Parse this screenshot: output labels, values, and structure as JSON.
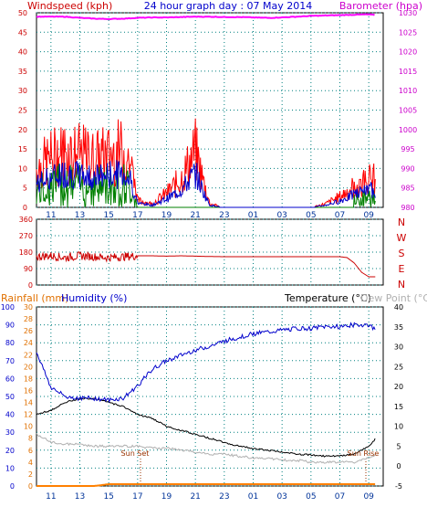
{
  "header": {
    "left": "Windspeed (kph)",
    "center": "24 hour graph day : 07 May 2014",
    "right": "Barometer (hpa)"
  },
  "bottom_header": {
    "rain": "Rainfall (mm)",
    "humidity": "Humidity (%)",
    "temperature": "Temperature (°C)",
    "dew": "Dew Point (°C)"
  },
  "colors": {
    "windspeed": "#ff0000",
    "wind_avg": "#0000cc",
    "wind_green": "#008000",
    "barometer": "#ff00ff",
    "direction": "#cc0000",
    "humidity": "#0000cc",
    "temperature": "#000000",
    "dew_point": "#b0b0b0",
    "rainfall": "#ff8000",
    "axis_left_top": "#cc0000",
    "axis_right_top": "#cc00cc",
    "axis_left_bottom": "#0000cc",
    "grid": "#008080"
  },
  "chart_data": [
    {
      "type": "line",
      "title": "24 hour graph day : 07 May 2014",
      "x_ticks": [
        "11",
        "13",
        "15",
        "17",
        "19",
        "21",
        "23",
        "01",
        "03",
        "05",
        "07",
        "09"
      ],
      "ylabel_left": "Windspeed (kph)",
      "ylabel_right": "Barometer (hpa)",
      "ylim_left": [
        0,
        50
      ],
      "ylim_right": [
        980,
        1030
      ],
      "left_ticks": [
        "0",
        "5",
        "10",
        "15",
        "20",
        "25",
        "30",
        "35",
        "40",
        "45",
        "50"
      ],
      "right_ticks": [
        "980",
        "985",
        "990",
        "995",
        "1000",
        "1005",
        "1010",
        "1015",
        "1020",
        "1025",
        "1030"
      ],
      "grid": true,
      "series": [
        {
          "name": "Windspeed (kph)",
          "axis": "left",
          "x": [
            10,
            11,
            12,
            13,
            14,
            15,
            16,
            16.5,
            17,
            18,
            19,
            20,
            20.5,
            21,
            21.5,
            22,
            23,
            24,
            25,
            26,
            27,
            28,
            29,
            30,
            31,
            32,
            33,
            33.5
          ],
          "values": [
            11,
            14,
            16,
            15,
            14,
            15,
            16,
            13,
            2,
            1,
            4,
            8,
            12,
            16,
            8,
            1,
            0,
            0,
            0,
            0,
            0,
            0,
            0,
            1,
            3,
            6,
            8,
            8
          ]
        },
        {
          "name": "Barometer (hpa)",
          "axis": "right",
          "x": [
            10,
            11,
            12,
            13,
            14,
            15,
            16,
            17,
            18,
            19,
            20,
            21,
            22,
            23,
            24,
            25,
            26,
            27,
            28,
            29,
            30,
            31,
            32,
            33,
            33.5
          ],
          "values": [
            1029,
            1029,
            1029,
            1028.7,
            1028.5,
            1028.4,
            1028.5,
            1028.7,
            1028.8,
            1028.8,
            1028.9,
            1029,
            1029,
            1028.9,
            1028.9,
            1028.8,
            1028.7,
            1028.8,
            1029,
            1029.2,
            1029.3,
            1029.4,
            1029.5,
            1029.6,
            1029.4
          ]
        }
      ]
    },
    {
      "type": "scatter",
      "ylabel_right": [
        "N",
        "W",
        "S",
        "E",
        "N"
      ],
      "ylim": [
        0,
        360
      ],
      "left_ticks": [
        "0",
        "90",
        "180",
        "270",
        "360"
      ],
      "series": [
        {
          "name": "Wind direction",
          "x": [
            10,
            11,
            12,
            13,
            14,
            15,
            16,
            17,
            18,
            19,
            20,
            21,
            22,
            23,
            24,
            25,
            26,
            27,
            28,
            29,
            30,
            31,
            31.5,
            32,
            32.5,
            33,
            33.5
          ],
          "values": [
            155,
            160,
            150,
            160,
            155,
            150,
            155,
            160,
            160,
            158,
            160,
            158,
            156,
            155,
            155,
            155,
            155,
            155,
            155,
            155,
            155,
            155,
            150,
            120,
            70,
            45,
            45
          ]
        }
      ]
    },
    {
      "type": "line",
      "ylim_left": [
        0,
        100
      ],
      "ylim_left2": [
        0,
        30
      ],
      "ylim_right": [
        -5,
        40
      ],
      "left_ticks": [
        "0",
        "10",
        "20",
        "30",
        "40",
        "50",
        "60",
        "70",
        "80",
        "90",
        "100"
      ],
      "left2_ticks": [
        "0",
        "2",
        "4",
        "6",
        "8",
        "10",
        "12",
        "14",
        "16",
        "18",
        "20",
        "22",
        "24",
        "26",
        "28",
        "30"
      ],
      "right_ticks": [
        "-5",
        "0",
        "5",
        "10",
        "15",
        "20",
        "25",
        "30",
        "35",
        "40"
      ],
      "annotations": [
        "Sun Set",
        "Sun Rise"
      ],
      "series": [
        {
          "name": "Humidity (%)",
          "axis": "left",
          "x": [
            10,
            11,
            12,
            13,
            14,
            15,
            16,
            17,
            18,
            19,
            20,
            21,
            22,
            23,
            24,
            25,
            26,
            27,
            28,
            29,
            30,
            31,
            32,
            33,
            33.5
          ],
          "values": [
            75,
            55,
            50,
            49,
            49,
            48,
            49,
            56,
            65,
            70,
            73,
            76,
            78,
            81,
            83,
            85,
            86,
            87,
            88,
            88,
            89,
            89,
            90,
            90,
            87
          ]
        },
        {
          "name": "Temperature (°C)",
          "axis": "right",
          "x": [
            10,
            11,
            12,
            13,
            14,
            15,
            16,
            17,
            18,
            19,
            20,
            21,
            22,
            23,
            24,
            25,
            26,
            27,
            28,
            29,
            30,
            31,
            32,
            33,
            33.5
          ],
          "values": [
            13,
            14,
            16,
            17,
            17,
            16,
            15,
            13,
            12,
            10,
            9,
            8,
            7,
            6,
            5,
            4.5,
            4,
            3.5,
            3,
            2.8,
            2.5,
            2.5,
            3,
            5,
            7
          ]
        },
        {
          "name": "Dew Point (°C)",
          "axis": "right",
          "x": [
            10,
            11,
            12,
            13,
            14,
            15,
            16,
            17,
            18,
            19,
            20,
            21,
            22,
            23,
            24,
            25,
            26,
            27,
            28,
            29,
            30,
            31,
            32,
            33,
            33.5
          ],
          "values": [
            8,
            6,
            5.5,
            5.5,
            5,
            5,
            5,
            5,
            4.5,
            4.5,
            4,
            3.5,
            3,
            3,
            2.5,
            2,
            2,
            1.5,
            1.5,
            1,
            1,
            1,
            1,
            2,
            3
          ]
        },
        {
          "name": "Rainfall (mm)",
          "axis": "left2",
          "x": [
            10,
            14,
            15,
            20,
            30,
            33.5
          ],
          "values": [
            0,
            0,
            0.3,
            0.3,
            0.3,
            0.3
          ]
        }
      ]
    }
  ]
}
